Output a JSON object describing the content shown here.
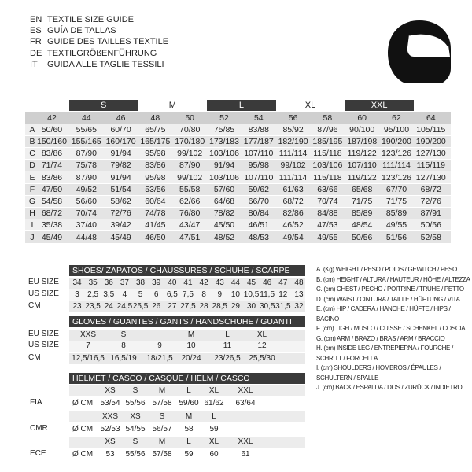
{
  "header": {
    "lines": [
      {
        "code": "EN",
        "text": "TEXTILE SIZE GUIDE"
      },
      {
        "code": "ES",
        "text": "GUÍA DE TALLAS"
      },
      {
        "code": "FR",
        "text": "GUIDE DES TAILLES TEXTILE"
      },
      {
        "code": "DE",
        "text": "TEXTILGRÖßENFÜHRUNG"
      },
      {
        "code": "IT",
        "text": "GUIDA ALLE TAGLIE TESSILI"
      }
    ]
  },
  "main_table": {
    "sizes": [
      "S",
      "M",
      "L",
      "XL",
      "XXL"
    ],
    "columns": [
      42,
      44,
      46,
      48,
      50,
      52,
      54,
      56,
      58,
      60,
      62,
      64
    ],
    "rows": [
      {
        "label": "A",
        "values": [
          "50/60",
          "55/65",
          "60/70",
          "65/75",
          "70/80",
          "75/85",
          "83/88",
          "85/92",
          "87/96",
          "90/100",
          "95/100",
          "105/115"
        ]
      },
      {
        "label": "B",
        "values": [
          "150/160",
          "155/165",
          "160/170",
          "165/175",
          "170/180",
          "173/183",
          "177/187",
          "182/190",
          "185/195",
          "187/198",
          "190/200",
          "190/200"
        ]
      },
      {
        "label": "C",
        "values": [
          "83/86",
          "87/90",
          "91/94",
          "95/98",
          "99/102",
          "103/106",
          "107/110",
          "111/114",
          "115/118",
          "119/122",
          "123/126",
          "127/130"
        ]
      },
      {
        "label": "D",
        "values": [
          "71/74",
          "75/78",
          "79/82",
          "83/86",
          "87/90",
          "91/94",
          "95/98",
          "99/102",
          "103/106",
          "107/110",
          "111/114",
          "115/119"
        ]
      },
      {
        "label": "E",
        "values": [
          "83/86",
          "87/90",
          "91/94",
          "95/98",
          "99/102",
          "103/106",
          "107/110",
          "111/114",
          "115/118",
          "119/122",
          "123/126",
          "127/130"
        ]
      },
      {
        "label": "F",
        "values": [
          "47/50",
          "49/52",
          "51/54",
          "53/56",
          "55/58",
          "57/60",
          "59/62",
          "61/63",
          "63/66",
          "65/68",
          "67/70",
          "68/72"
        ]
      },
      {
        "label": "G",
        "values": [
          "54/58",
          "56/60",
          "58/62",
          "60/64",
          "62/66",
          "64/68",
          "66/70",
          "68/72",
          "70/74",
          "71/75",
          "71/75",
          "72/76"
        ]
      },
      {
        "label": "H",
        "values": [
          "68/72",
          "70/74",
          "72/76",
          "74/78",
          "76/80",
          "78/82",
          "80/84",
          "82/86",
          "84/88",
          "85/89",
          "85/89",
          "87/91"
        ]
      },
      {
        "label": "I",
        "values": [
          "35/38",
          "37/40",
          "39/42",
          "41/45",
          "43/47",
          "45/50",
          "46/51",
          "46/52",
          "47/53",
          "48/54",
          "49/55",
          "50/56"
        ]
      },
      {
        "label": "J",
        "values": [
          "45/49",
          "44/48",
          "45/49",
          "46/50",
          "47/51",
          "48/52",
          "48/53",
          "49/54",
          "49/55",
          "50/56",
          "51/56",
          "52/58"
        ]
      }
    ]
  },
  "shoes": {
    "title": "SHOES/ ZAPATOS / CHAUSSURES / SCHUHE / SCARPE",
    "rows": [
      {
        "label": "EU SIZE",
        "values": [
          "34",
          "35",
          "36",
          "37",
          "38",
          "39",
          "40",
          "41",
          "42",
          "43",
          "44",
          "45",
          "46",
          "47",
          "48"
        ]
      },
      {
        "label": "US SIZE",
        "values": [
          "3",
          "2,5",
          "3,5",
          "4",
          "5",
          "6",
          "6,5",
          "7,5",
          "8",
          "9",
          "10",
          "10,5",
          "11,5",
          "12",
          "13"
        ]
      },
      {
        "label": "CM",
        "values": [
          "23",
          "23,5",
          "24",
          "24,5",
          "25,5",
          "26",
          "27",
          "27,5",
          "28",
          "28,5",
          "29",
          "30",
          "30,5",
          "31,5",
          "32"
        ]
      }
    ]
  },
  "gloves": {
    "title": "GLOVES / GUANTES / GANTS / HANDSCHUHE / GUANTI",
    "rows": [
      {
        "label": "EU SIZE",
        "values": [
          "XXS",
          "S",
          null,
          "M",
          "L",
          "XL"
        ]
      },
      {
        "label": "US SIZE",
        "values": [
          "7",
          "8",
          "9",
          "10",
          "11",
          "12"
        ]
      },
      {
        "label": "CM",
        "values": [
          "12,5/16,5",
          "16,5/19",
          "18/21,5",
          "20/24",
          "23/26,5",
          "25,5/30"
        ]
      }
    ]
  },
  "helmet": {
    "title": "HELMET / CASCO / CASQUE / HELM / CASCO",
    "groups": [
      {
        "name": "FIA",
        "sizes": [
          "XS",
          "S",
          "M",
          "L",
          "XL",
          "XXL"
        ],
        "unit": "Ø CM",
        "values": [
          "53/54",
          "55/56",
          "57/58",
          "59/60",
          "61/62",
          "63/64"
        ]
      },
      {
        "name": "CMR",
        "sizes": [
          "XXS",
          "XS",
          "S",
          "M",
          "L"
        ],
        "unit": "Ø CM",
        "values": [
          "52/53",
          "54/55",
          "56/57",
          "58",
          "59"
        ]
      },
      {
        "name": "ECE",
        "sizes": [
          "XS",
          "S",
          "M",
          "L",
          "XL",
          "XXL"
        ],
        "unit": "Ø CM",
        "values": [
          "53",
          "55/56",
          "57/58",
          "59",
          "60",
          "61"
        ]
      }
    ]
  },
  "legend": [
    "A. (Kg) WEIGHT / PESO / POIDS / GEWITCH / PESO",
    "B. (cm) HEIGHT / ALTURA / HAUTEUR / HÖHE / ALTEZZA",
    "C. (cm) CHEST / PECHO / POITRINE / TRUHE / PETTO",
    "D. (cm) WAIST / CINTURA / TAILLE / HÜFTUNG / VITA",
    "E. (cm) HIP / CADERA / HANCHE / HÜFTE / HIPS / BACINO",
    "F. (cm) TIGH / MUSLO / CUISSE / SCHENKEL / COSCIA",
    "G. (cm) ARM / BRAZO / BRAS / ARM / BRACCIO",
    "H. (cm) INSIDE LEG / ENTREPIERNA / FOURCHE / SCHRITT / FORCELLA",
    "I. (cm) SHOULDERS / HOMBROS / ÉPAULES / SCHULTERN / SPALLE",
    "J. (cm) BACK / ESPALDA / DOS / ZURÜCK / INDIETRO"
  ]
}
